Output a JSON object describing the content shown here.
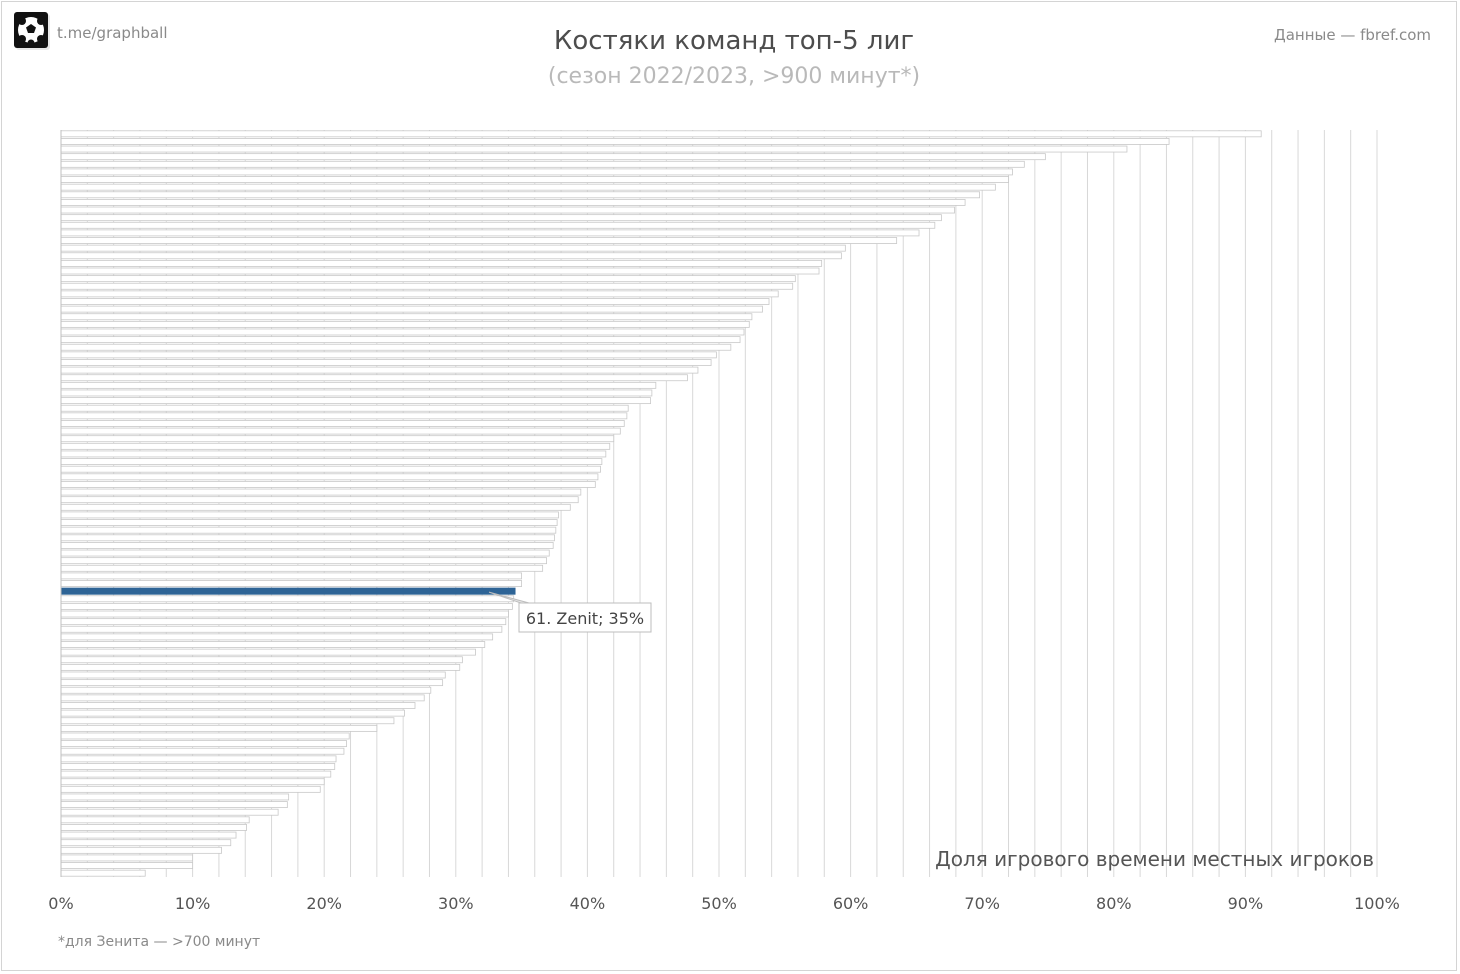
{
  "header": {
    "channel": "t.me/graphball",
    "source": "Данные — fbref.com",
    "title": "Костяки команд топ-5 лиг",
    "subtitle": "(сезон 2022/2023, >900 минут*)"
  },
  "footer": {
    "footnote": "*для Зенита — >700 минут"
  },
  "colors": {
    "bar_fill": "#ffffff",
    "bar_stroke": "#c8c8c8",
    "highlight": "#2e6496",
    "grid": "#d8d8d8"
  },
  "chart_data": {
    "type": "bar",
    "orientation": "horizontal",
    "xlabel": "Доля игрового времени местных игроков",
    "xlim": [
      0,
      100
    ],
    "x_ticks": [
      "0%",
      "10%",
      "20%",
      "30%",
      "40%",
      "50%",
      "60%",
      "70%",
      "80%",
      "90%",
      "100%"
    ],
    "grid": true,
    "values": [
      91.2,
      84.2,
      81.0,
      74.8,
      73.2,
      72.3,
      72.0,
      71.0,
      69.8,
      68.7,
      67.9,
      66.9,
      66.4,
      65.2,
      63.5,
      59.6,
      59.3,
      57.8,
      57.6,
      55.8,
      55.6,
      54.5,
      53.8,
      53.3,
      52.5,
      52.3,
      51.9,
      51.6,
      50.9,
      49.8,
      49.4,
      48.4,
      47.6,
      45.2,
      44.9,
      44.8,
      43.1,
      43.0,
      42.8,
      42.5,
      42.0,
      41.7,
      41.4,
      41.1,
      41.0,
      40.8,
      40.6,
      39.5,
      39.3,
      38.7,
      37.8,
      37.7,
      37.6,
      37.5,
      37.4,
      37.1,
      36.9,
      36.6,
      35.0,
      35.0,
      34.5,
      34.4,
      34.3,
      34.0,
      33.8,
      33.5,
      32.8,
      32.2,
      31.5,
      30.5,
      30.3,
      29.2,
      29.0,
      28.1,
      27.6,
      26.9,
      26.1,
      25.3,
      24.0,
      21.9,
      21.7,
      21.5,
      20.9,
      20.8,
      20.5,
      20.0,
      19.7,
      17.3,
      17.2,
      16.5,
      14.3,
      14.1,
      13.3,
      12.9,
      12.2,
      10.0,
      10.0,
      6.4
    ],
    "highlight": {
      "index": 60,
      "label": "61. Zenit; 35%"
    }
  }
}
